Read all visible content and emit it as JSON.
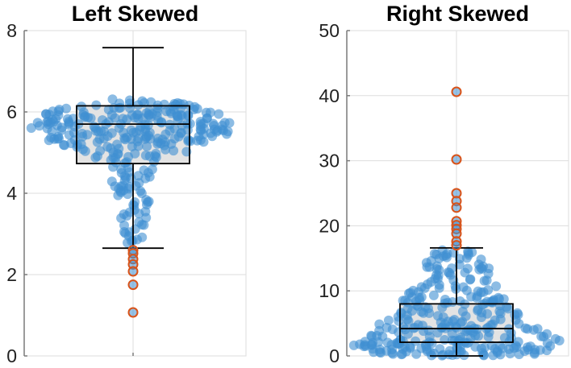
{
  "chart_data": [
    {
      "type": "box-swarm",
      "title": "Left Skewed",
      "ylim": [
        0,
        8
      ],
      "yticks": [
        0,
        2,
        4,
        6,
        8
      ],
      "grid": true,
      "box": {
        "min_whisker": 2.65,
        "q1": 4.73,
        "median": 5.7,
        "q3": 6.15,
        "max_whisker": 7.58
      },
      "outliers": [
        2.6,
        2.52,
        2.38,
        2.25,
        2.08,
        1.75,
        1.07
      ],
      "points_summary": "approx. 300 points, dense between 4.7 and 6.7, sparse tail down to about 2.6"
    },
    {
      "type": "box-swarm",
      "title": "Right Skewed",
      "ylim": [
        0,
        50
      ],
      "yticks": [
        0,
        10,
        20,
        30,
        40,
        50
      ],
      "grid": true,
      "box": {
        "min_whisker": 0,
        "q1": 2.1,
        "median": 4.2,
        "q3": 8.0,
        "max_whisker": 16.6
      },
      "outliers": [
        40.6,
        30.2,
        25.0,
        23.8,
        22.8,
        20.7,
        20.1,
        19.5,
        18.8,
        17.6,
        17.0
      ],
      "points_summary": "approx. 300 points, dense between 0 and 8, thinning tail up to about 16"
    }
  ],
  "colors": {
    "point_fill": "#3f8fd2",
    "outlier_edge": "#d95319",
    "box_fill": "#e3e3e3",
    "line": "#000000",
    "grid": "#dddddd",
    "axis": "#7a7a7a"
  }
}
